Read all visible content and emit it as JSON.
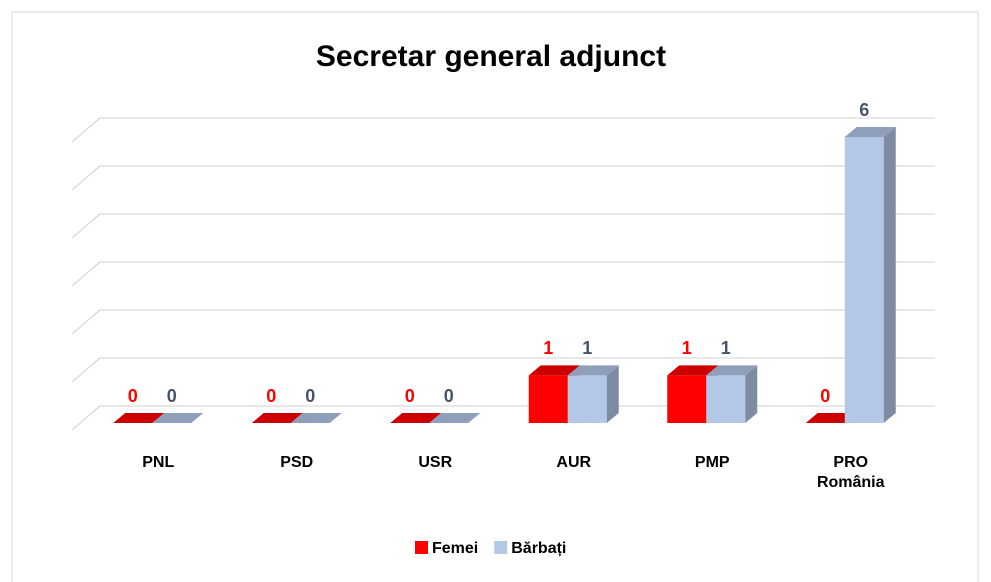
{
  "chart_data": {
    "type": "bar3d",
    "title": "Secretar general adjunct",
    "categories": [
      "PNL",
      "PSD",
      "USR",
      "AUR",
      "PMP",
      "PRO România"
    ],
    "series": [
      {
        "name": "Femei",
        "color": "#ff0000",
        "label_color": "#ff0000",
        "values": [
          0,
          0,
          0,
          1,
          1,
          0
        ]
      },
      {
        "name": "Bărbați",
        "color": "#b4c7e7",
        "label_color": "#44546a",
        "values": [
          0,
          0,
          0,
          1,
          1,
          6
        ]
      }
    ],
    "ylim": [
      0,
      6
    ],
    "yticks": [
      0,
      1,
      2,
      3,
      4,
      5,
      6
    ],
    "grid": true,
    "legend": "bottom"
  }
}
